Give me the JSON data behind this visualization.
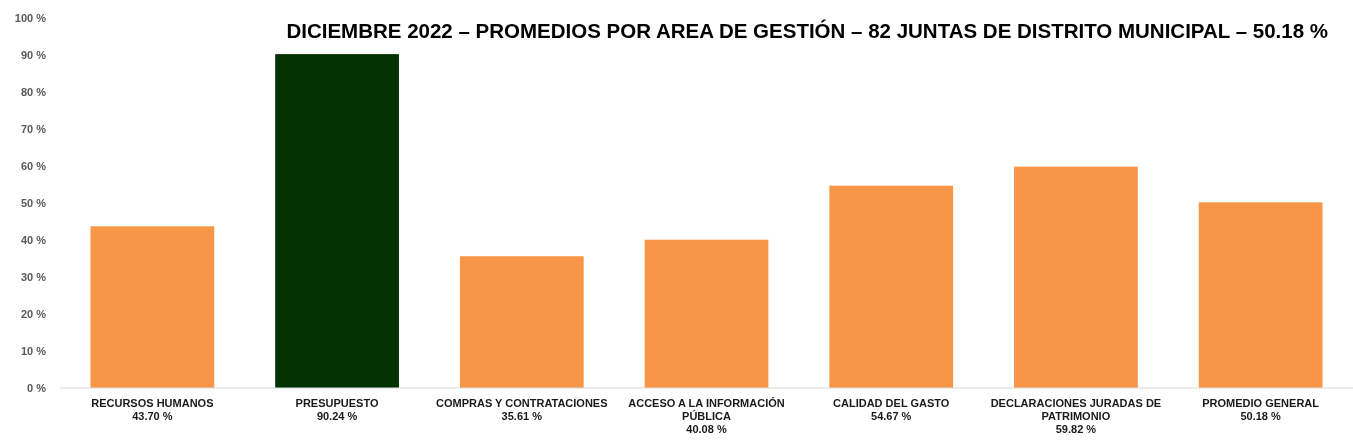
{
  "chart_data": {
    "type": "bar",
    "title": "DICIEMBRE 2022 – PROMEDIOS POR AREA DE GESTIÓN – 82 JUNTAS DE DISTRITO MUNICIPAL – 50.18 %",
    "categories": [
      "RECURSOS HUMANOS",
      "PRESUPUESTO",
      "COMPRAS Y CONTRATACIONES",
      "ACCESO A LA INFORMACIÓN PÚBLICA",
      "CALIDAD DEL GASTO",
      "DECLARACIONES JURADAS DE PATRIMONIO",
      "PROMEDIO GENERAL"
    ],
    "values": [
      43.7,
      90.24,
      35.61,
      40.08,
      54.67,
      59.82,
      50.18
    ],
    "colors": [
      "#f79646",
      "#033303",
      "#f79646",
      "#f79646",
      "#f79646",
      "#f79646",
      "#f79646"
    ],
    "value_labels": [
      "43.70 %",
      "90.24 %",
      "35.61 %",
      "40.08 %",
      "54.67 %",
      "59.82 %",
      "50.18 %"
    ],
    "ylim": [
      0,
      100
    ],
    "yticks": [
      {
        "value": 0,
        "label": "0 %"
      },
      {
        "value": 10,
        "label": "10 %"
      },
      {
        "value": 20,
        "label": "20 %"
      },
      {
        "value": 30,
        "label": "30 %"
      },
      {
        "value": 40,
        "label": "40 %"
      },
      {
        "value": 50,
        "label": "50 %"
      },
      {
        "value": 60,
        "label": "60 %"
      },
      {
        "value": 70,
        "label": "70 %"
      },
      {
        "value": 80,
        "label": "80 %"
      },
      {
        "value": 90,
        "label": "90 %"
      },
      {
        "value": 100,
        "label": "100 %"
      }
    ]
  }
}
